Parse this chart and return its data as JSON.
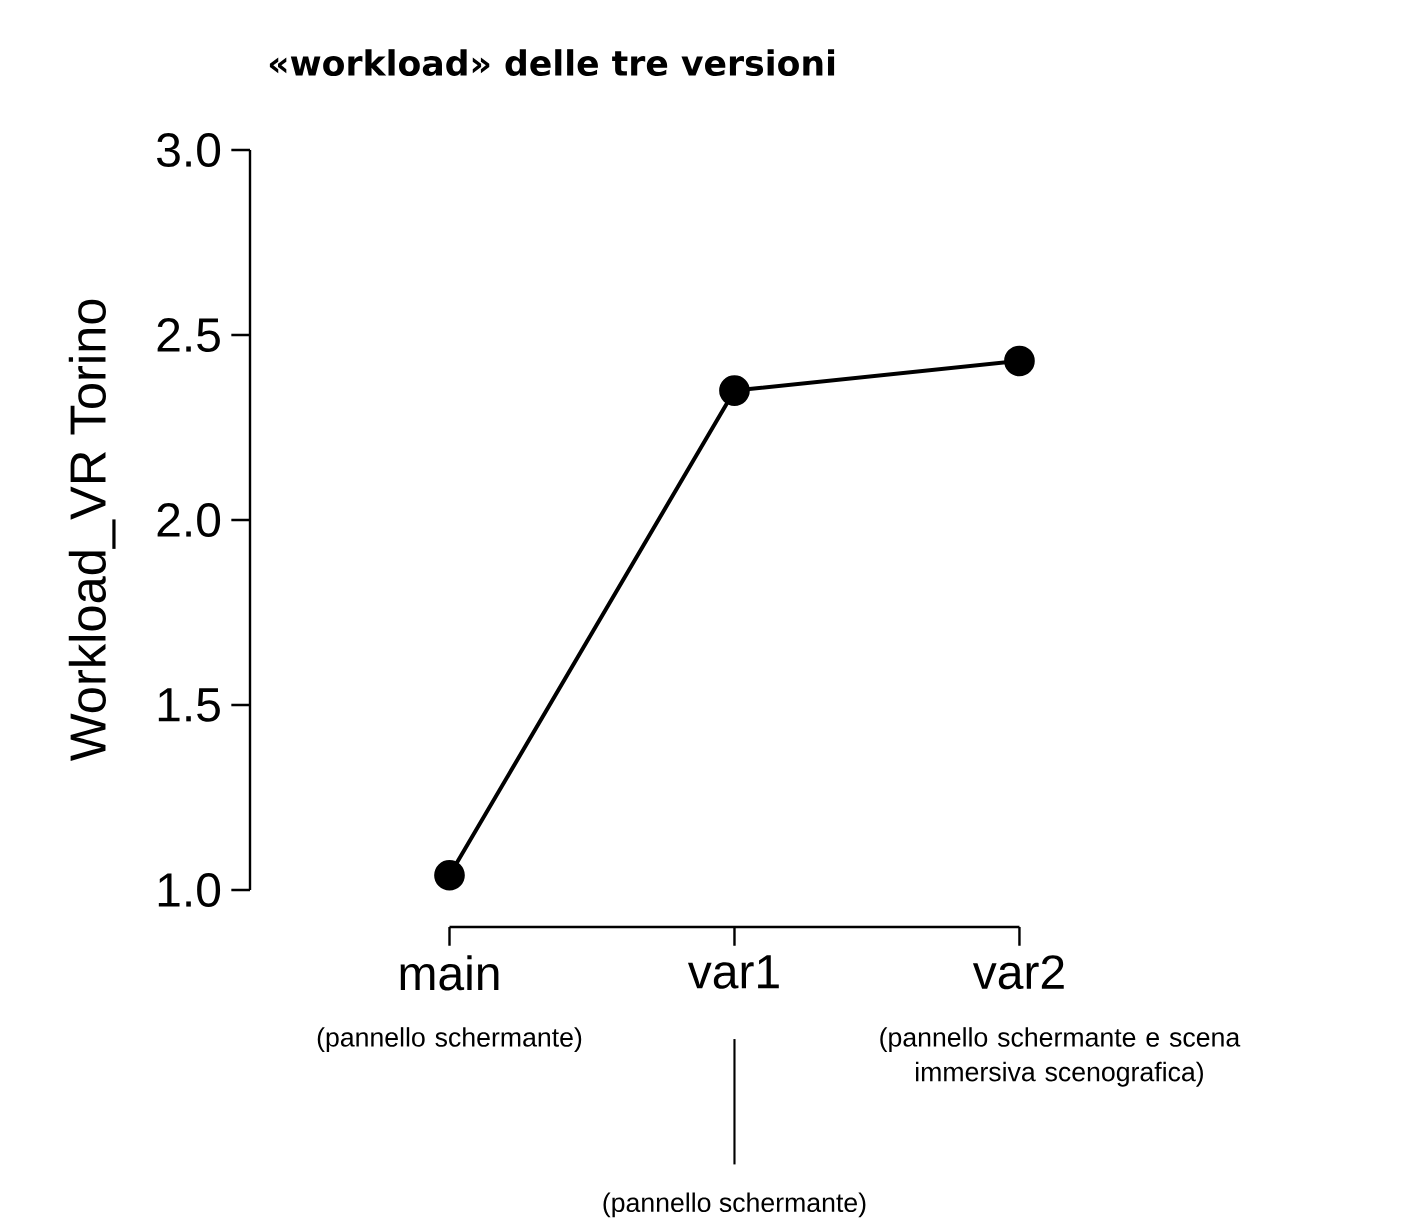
{
  "chart_data": {
    "type": "line",
    "title": "«workload» delle tre versioni",
    "ylabel": "Workload_VR Torino",
    "categories": [
      "main",
      "var1",
      "var2"
    ],
    "series": [
      {
        "color": "#000000",
        "values": [
          1.04,
          2.35,
          2.43
        ]
      }
    ],
    "ylim": [
      1.0,
      3.0
    ],
    "yticks": [
      {
        "value": 1.0,
        "label": "1.0"
      },
      {
        "value": 1.5,
        "label": "1.5"
      },
      {
        "value": 2.0,
        "label": "2.0"
      },
      {
        "value": 2.5,
        "label": "2.5"
      },
      {
        "value": 3.0,
        "label": "3.0"
      }
    ],
    "marker": "circle",
    "line_style": "solid",
    "grid": false,
    "annotations": [
      "(pannello schermante)",
      "(pannello schermante)",
      "(pannello schermante e scena immersiva scenografica)"
    ]
  }
}
